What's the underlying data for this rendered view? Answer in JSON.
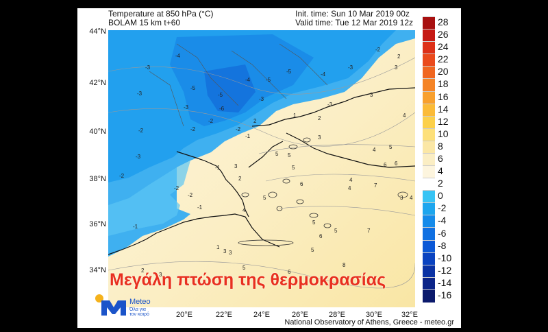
{
  "header": {
    "title_line1": "Temperature at 850 hPa (°C)",
    "title_line2": "BOLAM 15 km t+60",
    "init_time": "Init. time: Sun 10 Mar 2019 00z",
    "valid_time": "Valid time: Tue 12 Mar 2019 12z"
  },
  "latitude_labels": [
    "44°N",
    "42°N",
    "40°N",
    "38°N",
    "36°N",
    "34°N"
  ],
  "longitude_labels": [
    "20°E",
    "22°E",
    "24°E",
    "26°E",
    "28°E",
    "30°E",
    "32°E"
  ],
  "colorbar": {
    "labels": [
      "28",
      "26",
      "24",
      "22",
      "20",
      "18",
      "16",
      "14",
      "12",
      "10",
      "8",
      "6",
      "4",
      "2",
      "0",
      "-2",
      "-4",
      "-6",
      "-8",
      "-10",
      "-12",
      "-14",
      "-16"
    ],
    "colors": [
      "#a81010",
      "#c61a14",
      "#dd3018",
      "#ea4a1c",
      "#f06620",
      "#f58426",
      "#f8a02e",
      "#fbbb38",
      "#fcd04a",
      "#fde07a",
      "#fbe7a6",
      "#fbeec4",
      "#fdf5de",
      "#ffffff",
      "#38c4f4",
      "#1ea6ee",
      "#158bea",
      "#1070e2",
      "#0b58d6",
      "#0a43c0",
      "#0a32a4",
      "#0b2488",
      "#0b1a6c"
    ]
  },
  "banner": "Μεγάλη πτώση της θερμοκρασίας",
  "logo": {
    "name": "Meteo",
    "tagline_1": "Όλα για",
    "tagline_2": "τον καιρό"
  },
  "footer": "National Observatory of Athens, Greece - meteo.gr",
  "contour_values": [
    "-4",
    "-3",
    "-3",
    "-2",
    "-3",
    "-5",
    "-5",
    "-6",
    "-5",
    "-4",
    "-5",
    "-4",
    "-3",
    "-3",
    "-2",
    "-2",
    "-1",
    "-2",
    "-1",
    "-2",
    "-1",
    "-2",
    "-3",
    "-2",
    "-1",
    "-3",
    "-2",
    "2",
    "3",
    "4",
    "1",
    "2",
    "3",
    "4",
    "5",
    "5",
    "6",
    "4",
    "5",
    "6",
    "7",
    "5",
    "4",
    "3",
    "5",
    "6",
    "5",
    "1",
    "2",
    "3",
    "3",
    "5",
    "6",
    "7",
    "8",
    "4",
    "3",
    "6",
    "5",
    "3",
    "2",
    "2",
    "3",
    "4",
    "5",
    "4",
    "3"
  ]
}
